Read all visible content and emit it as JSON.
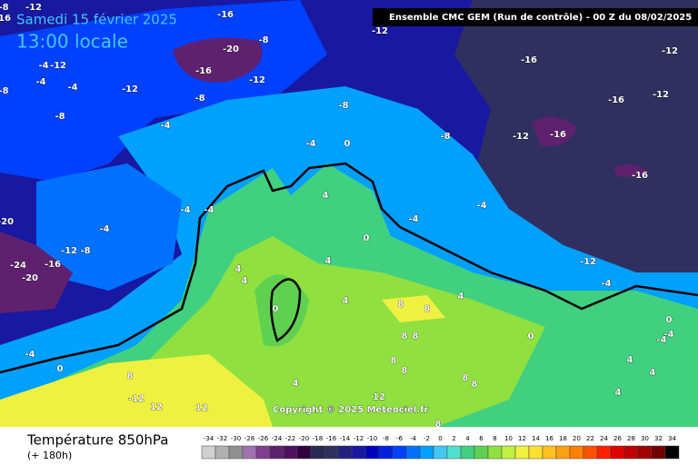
{
  "header": {
    "date": "Samedi 15 février 2025",
    "time": "13:00 locale",
    "model": "Ensemble CMC GEM  (Run de contrôle)  -  00 Z du 08/02/2025",
    "copyright": "Copyright © 2025 Meteociel.fr"
  },
  "footer": {
    "title": "Température 850hPa",
    "lead": "(+ 180h)"
  },
  "contour_labels": [
    -8,
    -12,
    16,
    -16,
    -12,
    -8,
    -20,
    -16,
    -12,
    -4,
    -12,
    -4,
    -4,
    -8,
    -12,
    -8,
    -8,
    -8,
    -4,
    -4,
    0,
    -8,
    -16,
    -12,
    -12,
    -16,
    -12,
    -16,
    -16,
    -20,
    -4,
    -12,
    -8,
    -4,
    -4,
    4,
    -4,
    -4,
    0,
    -24,
    -16,
    -20,
    4,
    4,
    4,
    4,
    0,
    8,
    8,
    4,
    -12,
    -4,
    -4,
    0,
    8,
    4,
    8,
    8,
    8,
    8,
    8,
    8,
    -12,
    12,
    12,
    12,
    8,
    4,
    4,
    4,
    0,
    -4,
    -4,
    0
  ],
  "legend": {
    "ticks": [
      -34,
      -32,
      -30,
      -28,
      -26,
      -24,
      -22,
      -20,
      -18,
      -16,
      -14,
      -12,
      -10,
      -8,
      -6,
      -4,
      -2,
      0,
      2,
      4,
      6,
      8,
      10,
      12,
      14,
      16,
      18,
      20,
      22,
      24,
      26,
      28,
      30,
      32,
      34
    ],
    "colors": [
      "#d0d0d0",
      "#b0b0b0",
      "#909090",
      "#a070b0",
      "#804090",
      "#602070",
      "#501060",
      "#300040",
      "#282850",
      "#303060",
      "#202080",
      "#1818a0",
      "#0000c0",
      "#0020e0",
      "#0040ff",
      "#0070ff",
      "#00a0ff",
      "#40c8f0",
      "#50e0d0",
      "#40d080",
      "#60d050",
      "#90e040",
      "#c0f040",
      "#f0f040",
      "#ffe030",
      "#ffc020",
      "#ffa010",
      "#ff8000",
      "#ff5000",
      "#ff2000",
      "#e00000",
      "#c00000",
      "#a00000",
      "#700000",
      "#000000"
    ]
  }
}
